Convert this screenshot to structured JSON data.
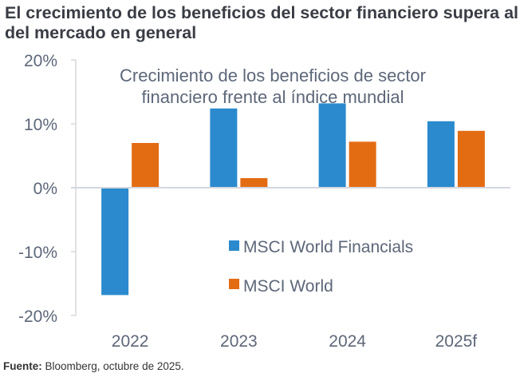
{
  "title": "El crecimiento de los beneficios del sector financiero supera al del mercado en general",
  "footer": {
    "label": "Fuente:",
    "text": " Bloomberg, octubre de 2025."
  },
  "chart_data": {
    "type": "bar",
    "title": "El crecimiento de los beneficios del sector financiero supera al del mercado en general",
    "subtitle_lines": [
      "Crecimiento de los beneficios de sector",
      "financiero frente al índice mundial"
    ],
    "categories": [
      "2022",
      "2023",
      "2024",
      "2025f"
    ],
    "series": [
      {
        "name": "MSCI World Financials",
        "color": "#2a8acd",
        "values": [
          -16.8,
          12.4,
          13.2,
          10.4
        ]
      },
      {
        "name": "MSCI World",
        "color": "#e36c13",
        "values": [
          7.0,
          1.5,
          7.2,
          8.9
        ]
      }
    ],
    "ylim": [
      -20,
      20
    ],
    "yticks": [
      20,
      10,
      0,
      -10,
      -20
    ],
    "ytick_labels": [
      "20%",
      "10%",
      "0%",
      "-10%",
      "-20%"
    ],
    "xlabel": "",
    "ylabel": "",
    "grid": false,
    "legend_position": "center-bottom",
    "source": "Fuente: Bloomberg, octubre de 2025."
  }
}
